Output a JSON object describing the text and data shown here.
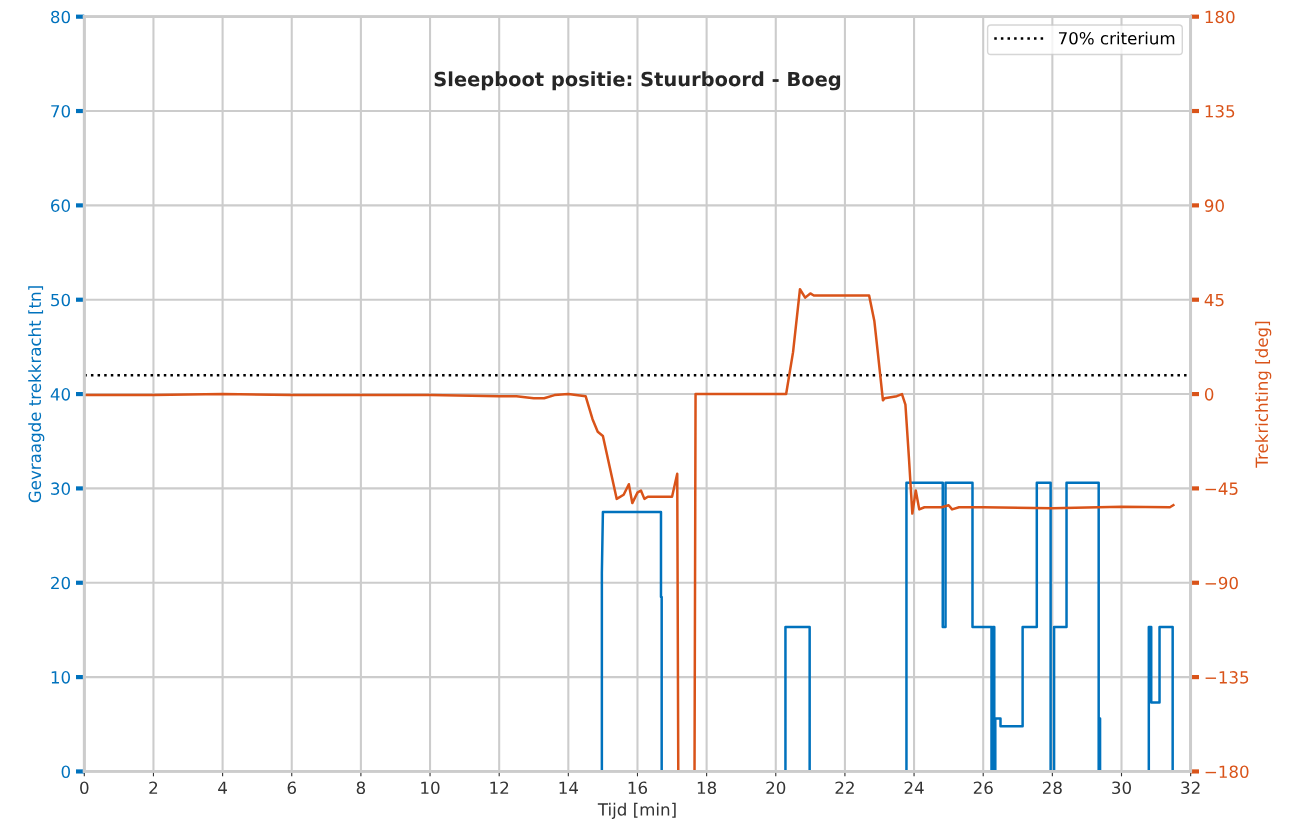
{
  "chart_data": {
    "type": "line",
    "title": "Sleepboot positie: Stuurboord - Boeg",
    "xlabel": "Tijd [min]",
    "ylabel": "Gevraagde trekkracht [tn]",
    "y2label": "Trekrichting [deg]",
    "xlim": [
      0,
      32
    ],
    "xticks": [
      0,
      2,
      4,
      6,
      8,
      10,
      12,
      14,
      16,
      18,
      20,
      22,
      24,
      26,
      28,
      30,
      32
    ],
    "ylim": [
      0,
      80
    ],
    "yticks": [
      0,
      10,
      20,
      30,
      40,
      50,
      60,
      70,
      80
    ],
    "y2lim": [
      -180,
      180
    ],
    "y2ticks": [
      -180,
      -135,
      -90,
      -45,
      0,
      45,
      90,
      135,
      180
    ],
    "grid": true,
    "legend": "top right",
    "ref_lines": [
      {
        "axis": "y",
        "value": 42,
        "label": "70% criterium",
        "color": "#000000",
        "line_style": "dotted"
      }
    ],
    "series": [
      {
        "type": "step",
        "color": "#0072bd",
        "x": [
          0,
          14.97,
          14.97,
          15.0,
          16.68,
          16.68,
          16.7,
          16.7,
          20.28,
          20.28,
          20.98,
          20.98,
          23.78,
          23.78,
          24.83,
          24.83,
          24.91,
          24.91,
          25.69,
          25.69,
          26.24,
          26.24,
          26.28,
          26.28,
          26.32,
          26.32,
          26.35,
          26.35,
          26.5,
          26.5,
          27.14,
          27.14,
          27.55,
          27.55,
          27.95,
          27.95,
          28.05,
          28.05,
          28.41,
          28.41,
          29.34,
          29.34,
          29.36,
          29.36,
          29.38,
          29.38,
          30.79,
          30.79,
          30.86,
          30.86,
          31.1,
          31.1,
          31.48,
          31.48,
          31.5
        ],
        "values": [
          0,
          0,
          21,
          27.5,
          27.5,
          18.5,
          18.5,
          0,
          0,
          15.3,
          15.3,
          0,
          0,
          30.6,
          30.6,
          15.3,
          15.3,
          30.6,
          30.6,
          15.3,
          15.3,
          0,
          0,
          15.3,
          15.3,
          0,
          0,
          5.6,
          5.6,
          4.8,
          4.8,
          15.3,
          15.3,
          30.6,
          30.6,
          0,
          0,
          15.3,
          15.3,
          30.6,
          30.6,
          0,
          0,
          5.6,
          5.6,
          0,
          0,
          15.3,
          15.3,
          7.3,
          7.3,
          15.3,
          15.3,
          0,
          0
        ]
      },
      {
        "axis": "y2",
        "color": "#d95319",
        "x": [
          0,
          2,
          4,
          6,
          8,
          10,
          12,
          12.5,
          13,
          13.3,
          13.6,
          14.0,
          14.5,
          14.7,
          14.85,
          15.0,
          15.2,
          15.4,
          15.6,
          15.75,
          15.85,
          16.0,
          16.1,
          16.2,
          16.3,
          16.5,
          17.0,
          17.15,
          17.18,
          17.2,
          17.65,
          17.68,
          18,
          20,
          20.3,
          20.5,
          20.7,
          20.85,
          21.0,
          21.1,
          21.2,
          21.6,
          22.7,
          22.85,
          22.95,
          23.1,
          23.15,
          23.5,
          23.65,
          23.75,
          23.85,
          23.95,
          24.05,
          24.15,
          24.3,
          24.8,
          25.0,
          25.1,
          25.3,
          26,
          28,
          30,
          31.4,
          31.5
        ],
        "values": [
          -0.5,
          -0.5,
          0,
          -0.5,
          -0.5,
          -0.5,
          -1,
          -1,
          -2,
          -2,
          -0.5,
          0,
          -1,
          -12,
          -18,
          -20,
          -35,
          -50,
          -48,
          -43,
          -52,
          -47,
          -46,
          -50,
          -49,
          -49,
          -49,
          -38,
          -180,
          -180,
          -180,
          0,
          0,
          0,
          0,
          20,
          50,
          46,
          48,
          47,
          47,
          47,
          47,
          35,
          20,
          -3,
          -2,
          -1,
          0,
          -5,
          -30,
          -57,
          -46,
          -55,
          -54,
          -54,
          -53,
          -55,
          -54,
          -54,
          -54.5,
          -53.8,
          -54,
          -53
        ]
      }
    ]
  }
}
